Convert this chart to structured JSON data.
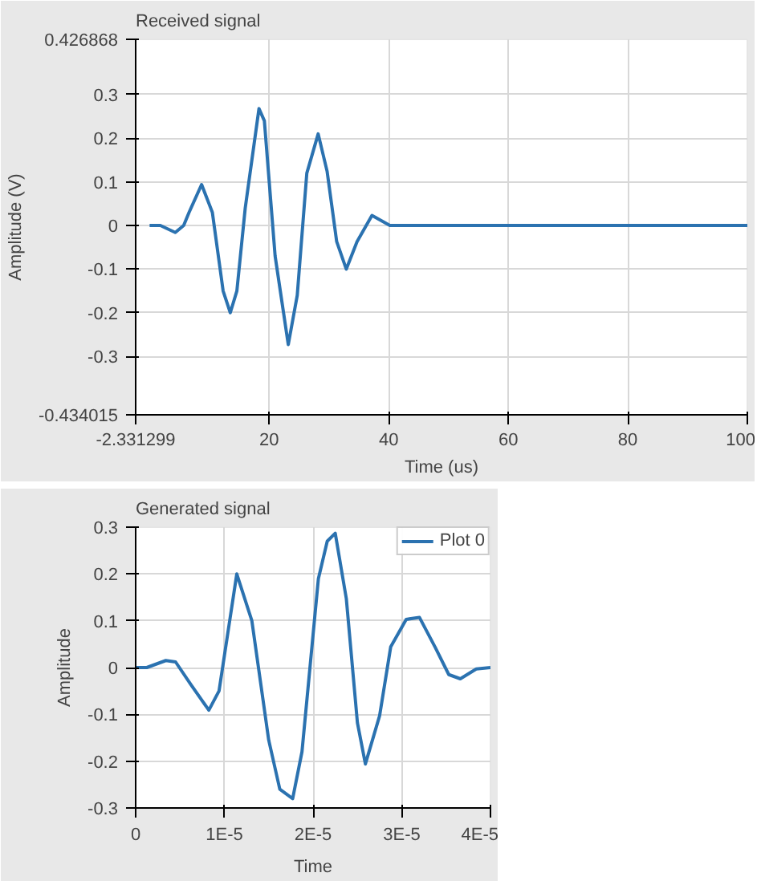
{
  "chart_data": [
    {
      "type": "line",
      "title": "Received signal",
      "xlabel": "Time (us)",
      "ylabel": "Amplitude (V)",
      "xlim": [
        -2.331299,
        100
      ],
      "ylim": [
        -0.434015,
        0.426868
      ],
      "xticks": [
        -2.331299,
        20,
        40,
        60,
        80,
        100
      ],
      "yticks": [
        -0.434015,
        -0.3,
        -0.2,
        -0.1,
        0,
        0.1,
        0.2,
        0.3,
        0.426868
      ],
      "grid": true,
      "series": [
        {
          "color": "#2b72b0",
          "x": [
            0,
            1.8,
            4.3,
            5.7,
            6.6,
            8.7,
            10.5,
            12.3,
            13.5,
            14.6,
            16,
            18.3,
            19.2,
            21,
            23.2,
            24.7,
            26.3,
            28.2,
            29.7,
            31.3,
            32.9,
            34.7,
            37.2,
            40.2,
            100
          ],
          "values": [
            0,
            0,
            -0.016,
            0,
            0.03,
            0.094,
            0.03,
            -0.15,
            -0.2,
            -0.15,
            0.04,
            0.268,
            0.24,
            -0.07,
            -0.273,
            -0.16,
            0.12,
            0.21,
            0.124,
            -0.037,
            -0.1,
            -0.037,
            0.023,
            0,
            0
          ]
        }
      ]
    },
    {
      "type": "line",
      "title": "Generated signal",
      "xlabel": "Time",
      "ylabel": "Amplitude",
      "xlim": [
        0,
        4e-05
      ],
      "ylim": [
        -0.3,
        0.3
      ],
      "xticks": [
        0,
        {
          "value": 1e-05,
          "label": "1E-5"
        },
        {
          "value": 2e-05,
          "label": "2E-5"
        },
        {
          "value": 3e-05,
          "label": "3E-5"
        },
        {
          "value": 4e-05,
          "label": "4E-5"
        }
      ],
      "yticks": [
        -0.3,
        -0.2,
        -0.1,
        0,
        0.1,
        0.2,
        0.3
      ],
      "grid": true,
      "legend": "top right",
      "series": [
        {
          "name": "Plot 0",
          "color": "#2b72b0",
          "x": [
            0,
            1.25e-06,
            3.4e-06,
            4.5e-06,
            6.25e-06,
            8.25e-06,
            9.4e-06,
            1.14e-05,
            1.31e-05,
            1.5e-05,
            1.625e-05,
            1.77e-05,
            1.875e-05,
            2.06e-05,
            2.16e-05,
            2.25e-05,
            2.375e-05,
            2.5e-05,
            2.59e-05,
            2.75e-05,
            2.875e-05,
            3.05e-05,
            3.2e-05,
            3.375e-05,
            3.53e-05,
            3.66e-05,
            3.84e-05,
            4e-05
          ],
          "values": [
            0,
            0,
            0.015,
            0.012,
            -0.037,
            -0.091,
            -0.05,
            0.2,
            0.1,
            -0.155,
            -0.26,
            -0.28,
            -0.18,
            0.19,
            0.27,
            0.287,
            0.147,
            -0.118,
            -0.206,
            -0.103,
            0.044,
            0.103,
            0.107,
            0.044,
            -0.015,
            -0.024,
            -0.003,
            0
          ]
        }
      ]
    }
  ]
}
